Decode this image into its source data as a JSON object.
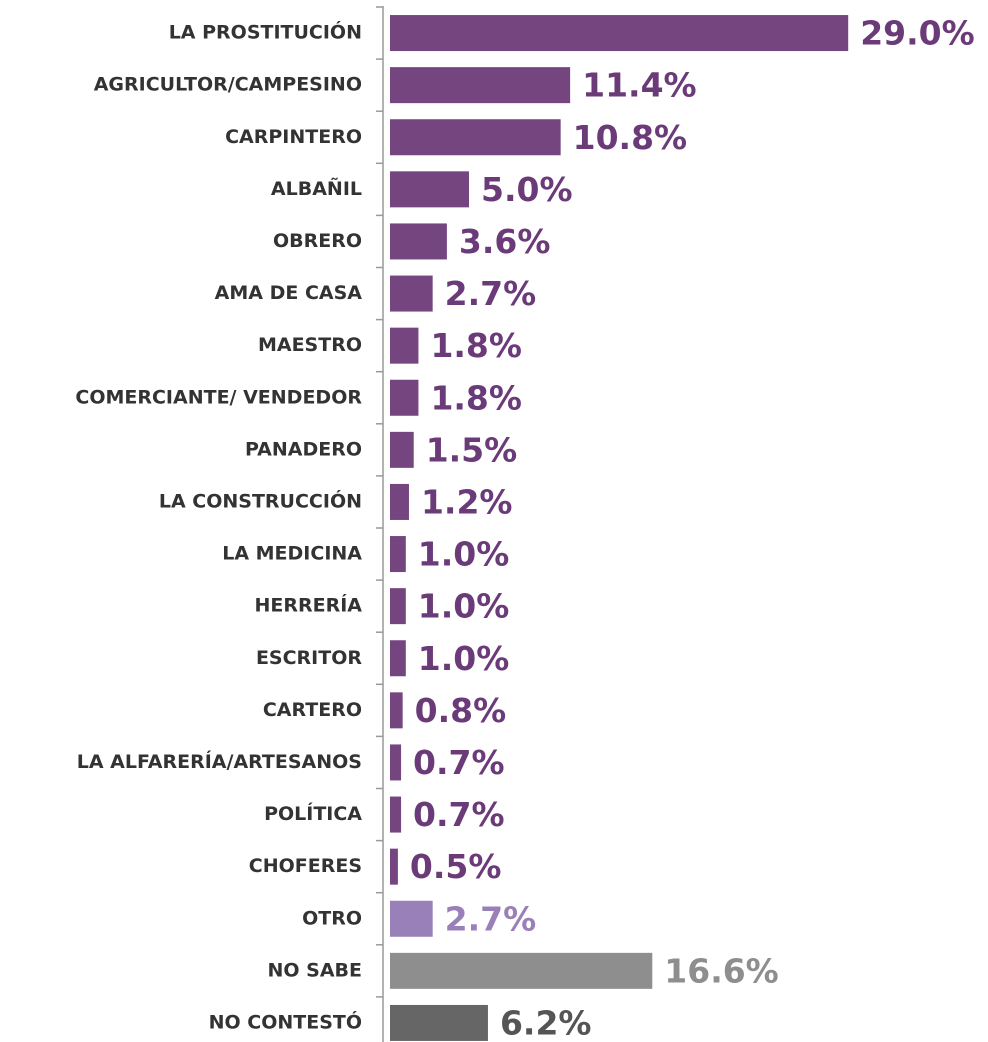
{
  "chart_data": {
    "type": "barh",
    "categories": [
      "LA PROSTITUCIÓN",
      "AGRICULTOR/CAMPESINO",
      "CARPINTERO",
      "ALBAÑIL",
      "OBRERO",
      "AMA DE CASA",
      "MAESTRO",
      "COMERCIANTE/ VENDEDOR",
      "PANADERO",
      "LA CONSTRUCCIÓN",
      "LA MEDICINA",
      "HERRERÍA",
      "ESCRITOR",
      "CARTERO",
      "LA ALFARERÍA/ARTESANOS",
      "POLÍTICA",
      "CHOFERES",
      "OTRO",
      "NO SABE",
      "NO CONTESTÓ"
    ],
    "values": [
      29.0,
      11.4,
      10.8,
      5.0,
      3.6,
      2.7,
      1.8,
      1.8,
      1.5,
      1.2,
      1.0,
      1.0,
      1.0,
      0.8,
      0.7,
      0.7,
      0.5,
      2.7,
      16.6,
      6.2
    ],
    "value_labels": [
      "29.0%",
      "11.4%",
      "10.8%",
      "5.0%",
      "3.6%",
      "2.7%",
      "1.8%",
      "1.8%",
      "1.5%",
      "1.2%",
      "1.0%",
      "1.0%",
      "1.0%",
      "0.8%",
      "0.7%",
      "0.7%",
      "0.5%",
      "2.7%",
      "16.6%",
      "6.2%"
    ],
    "colors": [
      "#74457f",
      "#74457f",
      "#74457f",
      "#74457f",
      "#74457f",
      "#74457f",
      "#74457f",
      "#74457f",
      "#74457f",
      "#74457f",
      "#74457f",
      "#74457f",
      "#74457f",
      "#74457f",
      "#74457f",
      "#74457f",
      "#74457f",
      "#9a80b8",
      "#8e8e8e",
      "#666666"
    ],
    "xlim": [
      0,
      30
    ]
  }
}
